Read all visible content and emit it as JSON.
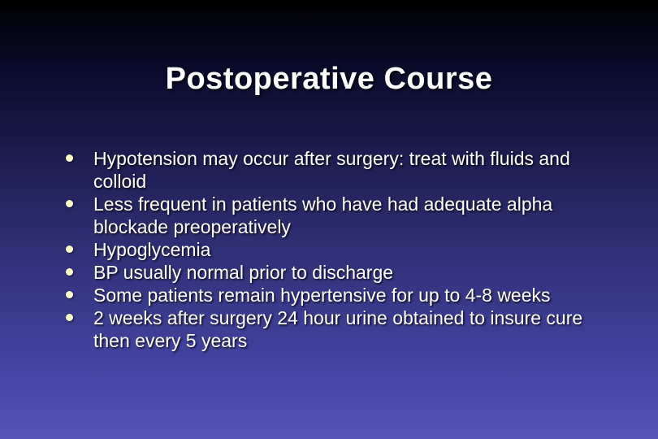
{
  "slide": {
    "title": "Postoperative Course",
    "background_gradient": {
      "top": "#000000",
      "mid_upper": "#0a0a2a",
      "mid": "#2a2a6a",
      "mid_lower": "#4545a5",
      "bottom": "#5555b5"
    },
    "title_color": "#ffffff",
    "title_fontsize": 38,
    "text_color": "#ffffff",
    "text_fontsize": 23,
    "bullet_color": "#ffffcc",
    "bullets": [
      "Hypotension may occur after surgery:  treat with fluids and colloid",
      "Less frequent in patients who have had adequate alpha blockade preoperatively",
      "Hypoglycemia",
      "BP usually normal prior to discharge",
      "Some patients remain hypertensive for up to 4-8 weeks",
      "2 weeks after surgery 24 hour urine obtained to insure cure then every 5 years"
    ]
  }
}
